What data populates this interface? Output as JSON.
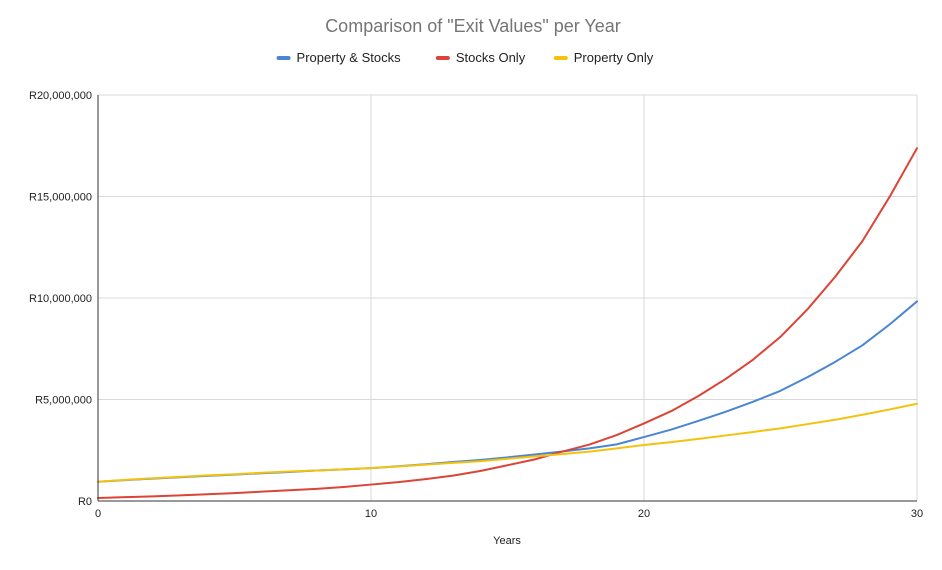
{
  "chart_data": {
    "type": "line",
    "title": "Comparison of \"Exit Values\" per Year",
    "xlabel": "Years",
    "ylabel": "",
    "xlim": [
      0,
      30
    ],
    "ylim": [
      0,
      20000000
    ],
    "x_ticks": [
      0,
      10,
      20,
      30
    ],
    "x_tick_labels": [
      "0",
      "10",
      "20",
      "30"
    ],
    "y_ticks": [
      0,
      5000000,
      10000000,
      15000000,
      20000000
    ],
    "y_tick_labels": [
      "R0",
      "R5,000,000",
      "R10,000,000",
      "R15,000,000",
      "R20,000,000"
    ],
    "grid": true,
    "legend_position": "top",
    "x": [
      0,
      1,
      2,
      3,
      4,
      5,
      6,
      7,
      8,
      9,
      10,
      11,
      12,
      13,
      14,
      15,
      16,
      17,
      18,
      19,
      20,
      21,
      22,
      23,
      24,
      25,
      26,
      27,
      28,
      29,
      30
    ],
    "series": [
      {
        "name": "Property & Stocks",
        "color": "#4a86d4",
        "values": [
          950000,
          1030000,
          1100000,
          1170000,
          1240000,
          1300000,
          1370000,
          1430000,
          1500000,
          1560000,
          1620000,
          1710000,
          1810000,
          1920000,
          2020000,
          2150000,
          2290000,
          2440000,
          2590000,
          2790000,
          3150000,
          3520000,
          3950000,
          4400000,
          4890000,
          5430000,
          6110000,
          6850000,
          7670000,
          8700000,
          9830000
        ]
      },
      {
        "name": "Stocks Only",
        "color": "#db4437",
        "values": [
          150000,
          190000,
          230000,
          280000,
          330000,
          390000,
          460000,
          530000,
          600000,
          690000,
          810000,
          930000,
          1080000,
          1250000,
          1480000,
          1760000,
          2050000,
          2430000,
          2780000,
          3250000,
          3820000,
          4430000,
          5180000,
          6020000,
          6970000,
          8090000,
          9460000,
          11040000,
          12800000,
          14990000,
          17380000
        ]
      },
      {
        "name": "Property Only",
        "color": "#f4c20d",
        "values": [
          950000,
          1040000,
          1120000,
          1190000,
          1260000,
          1320000,
          1390000,
          1450000,
          1500000,
          1560000,
          1620000,
          1700000,
          1790000,
          1880000,
          1960000,
          2080000,
          2200000,
          2310000,
          2430000,
          2590000,
          2760000,
          2900000,
          3060000,
          3230000,
          3400000,
          3580000,
          3790000,
          4000000,
          4250000,
          4510000,
          4790000
        ]
      }
    ]
  }
}
